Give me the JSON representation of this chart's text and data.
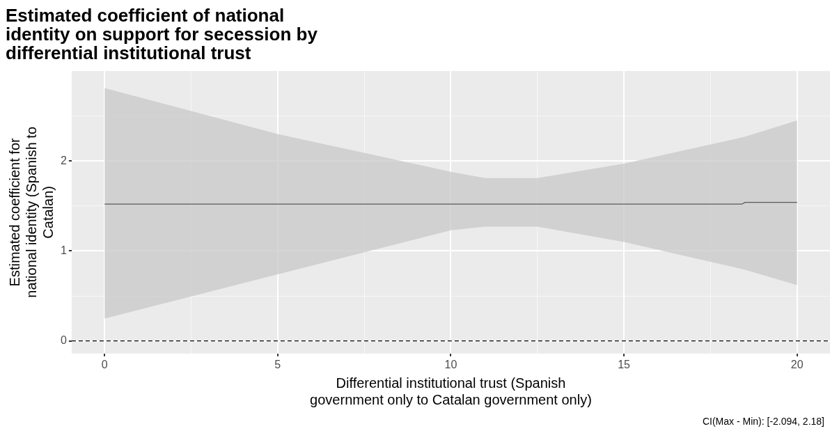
{
  "chart_data": {
    "type": "line",
    "title": "Estimated coefficient of national identity on support for secession by differential institutional trust",
    "xlabel": "Differential institutional trust (Spanish government only to Catalan government only)",
    "ylabel": "Estimated coefficient for national identity (Spanish to Catalan)",
    "x": [
      0,
      5,
      10,
      11,
      12.5,
      15,
      18.4,
      18.5,
      20
    ],
    "series": [
      {
        "color": "#595959",
        "values": [
          1.52,
          1.52,
          1.52,
          1.52,
          1.52,
          1.52,
          1.52,
          1.54,
          1.54
        ],
        "upper": [
          2.81,
          2.3,
          1.88,
          1.81,
          1.81,
          1.97,
          2.26,
          2.27,
          2.45
        ],
        "lower": [
          0.25,
          0.74,
          1.23,
          1.27,
          1.27,
          1.1,
          0.8,
          0.79,
          0.62
        ]
      }
    ],
    "xlim": [
      -0.95,
      20.95
    ],
    "xticks": [
      0,
      {
        "value": 2.5,
        "label": null
      },
      5,
      {
        "value": 7.5,
        "label": null
      },
      10,
      {
        "value": 12.5,
        "label": null
      },
      15,
      {
        "value": 17.5,
        "label": null
      },
      20
    ],
    "ylim": [
      -0.14,
      3
    ],
    "yticks": [
      0,
      {
        "value": 0.5,
        "label": null
      },
      1,
      {
        "value": 1.5,
        "label": null
      },
      2,
      {
        "value": 2.5,
        "label": null
      }
    ],
    "grid": true,
    "legend": false,
    "marker": "none",
    "line_style": "solid",
    "ref_lines": [
      {
        "axis": "y",
        "value": 0,
        "line_style": "dashed",
        "color": "#000000"
      }
    ],
    "annotations": [
      "CI(Max - Min): [-2.094, 2.18]"
    ]
  }
}
